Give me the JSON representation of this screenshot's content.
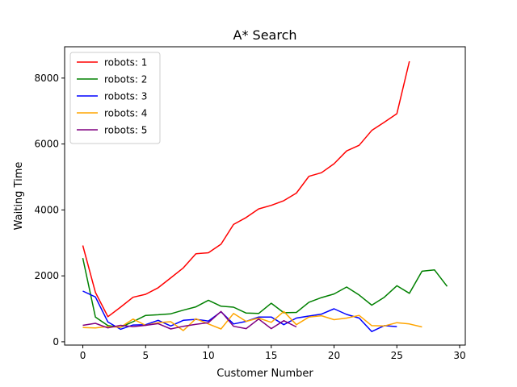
{
  "chart_data": {
    "type": "line",
    "title": "A* Search",
    "xlabel": "Customer Number",
    "ylabel": "Waiting Time",
    "xlim": [
      -1.45,
      30.45
    ],
    "ylim": [
      -100,
      8950
    ],
    "xticks": [
      0,
      5,
      10,
      15,
      20,
      25,
      30
    ],
    "yticks": [
      0,
      2000,
      4000,
      6000,
      8000
    ],
    "grid": false,
    "legend_position": "top-left",
    "series": [
      {
        "name": "robots: 1",
        "color": "#ff0000",
        "x": [
          0,
          1,
          2,
          3,
          4,
          5,
          6,
          7,
          8,
          9,
          10,
          11,
          12,
          13,
          14,
          15,
          16,
          17,
          18,
          19,
          20,
          21,
          22,
          23,
          24,
          25,
          26
        ],
        "y": [
          2920,
          1500,
          760,
          1050,
          1350,
          1440,
          1640,
          1940,
          2240,
          2670,
          2700,
          2960,
          3560,
          3770,
          4030,
          4140,
          4280,
          4510,
          5020,
          5130,
          5400,
          5790,
          5960,
          6410,
          6660,
          6920,
          8510
        ]
      },
      {
        "name": "robots: 2",
        "color": "#008000",
        "x": [
          0,
          1,
          2,
          3,
          4,
          5,
          6,
          7,
          8,
          9,
          10,
          11,
          12,
          13,
          14,
          15,
          16,
          17,
          18,
          19,
          20,
          21,
          22,
          23,
          24,
          25,
          26,
          27,
          28,
          29
        ],
        "y": [
          2540,
          750,
          490,
          440,
          610,
          800,
          820,
          850,
          960,
          1060,
          1260,
          1080,
          1050,
          870,
          860,
          1170,
          880,
          890,
          1200,
          1340,
          1450,
          1660,
          1420,
          1110,
          1350,
          1700,
          1470,
          2140,
          2180,
          1680
        ]
      },
      {
        "name": "robots: 3",
        "color": "#0000ff",
        "x": [
          0,
          1,
          2,
          3,
          4,
          5,
          6,
          7,
          8,
          9,
          10,
          11,
          12,
          13,
          14,
          15,
          16,
          17,
          18,
          19,
          20,
          21,
          22,
          23,
          24,
          25
        ],
        "y": [
          1540,
          1360,
          600,
          380,
          510,
          520,
          650,
          480,
          650,
          680,
          630,
          910,
          540,
          620,
          750,
          750,
          520,
          720,
          780,
          840,
          1000,
          830,
          720,
          310,
          490,
          460
        ]
      },
      {
        "name": "robots: 4",
        "color": "#ffa500",
        "x": [
          0,
          1,
          2,
          3,
          4,
          5,
          6,
          7,
          8,
          9,
          10,
          11,
          12,
          13,
          14,
          15,
          16,
          17,
          18,
          19,
          20,
          21,
          22,
          23,
          24,
          25,
          26,
          27
        ],
        "y": [
          430,
          420,
          460,
          440,
          690,
          500,
          580,
          610,
          340,
          700,
          540,
          390,
          860,
          620,
          720,
          590,
          920,
          520,
          750,
          790,
          670,
          720,
          800,
          490,
          480,
          580,
          540,
          450
        ]
      },
      {
        "name": "robots: 5",
        "color": "#800080",
        "x": [
          0,
          1,
          2,
          3,
          4,
          5,
          6,
          7,
          8,
          9,
          10,
          11,
          12,
          13,
          14,
          15,
          16,
          17
        ],
        "y": [
          500,
          560,
          420,
          500,
          460,
          500,
          550,
          390,
          470,
          530,
          580,
          920,
          470,
          400,
          690,
          400,
          640,
          450
        ]
      }
    ]
  }
}
